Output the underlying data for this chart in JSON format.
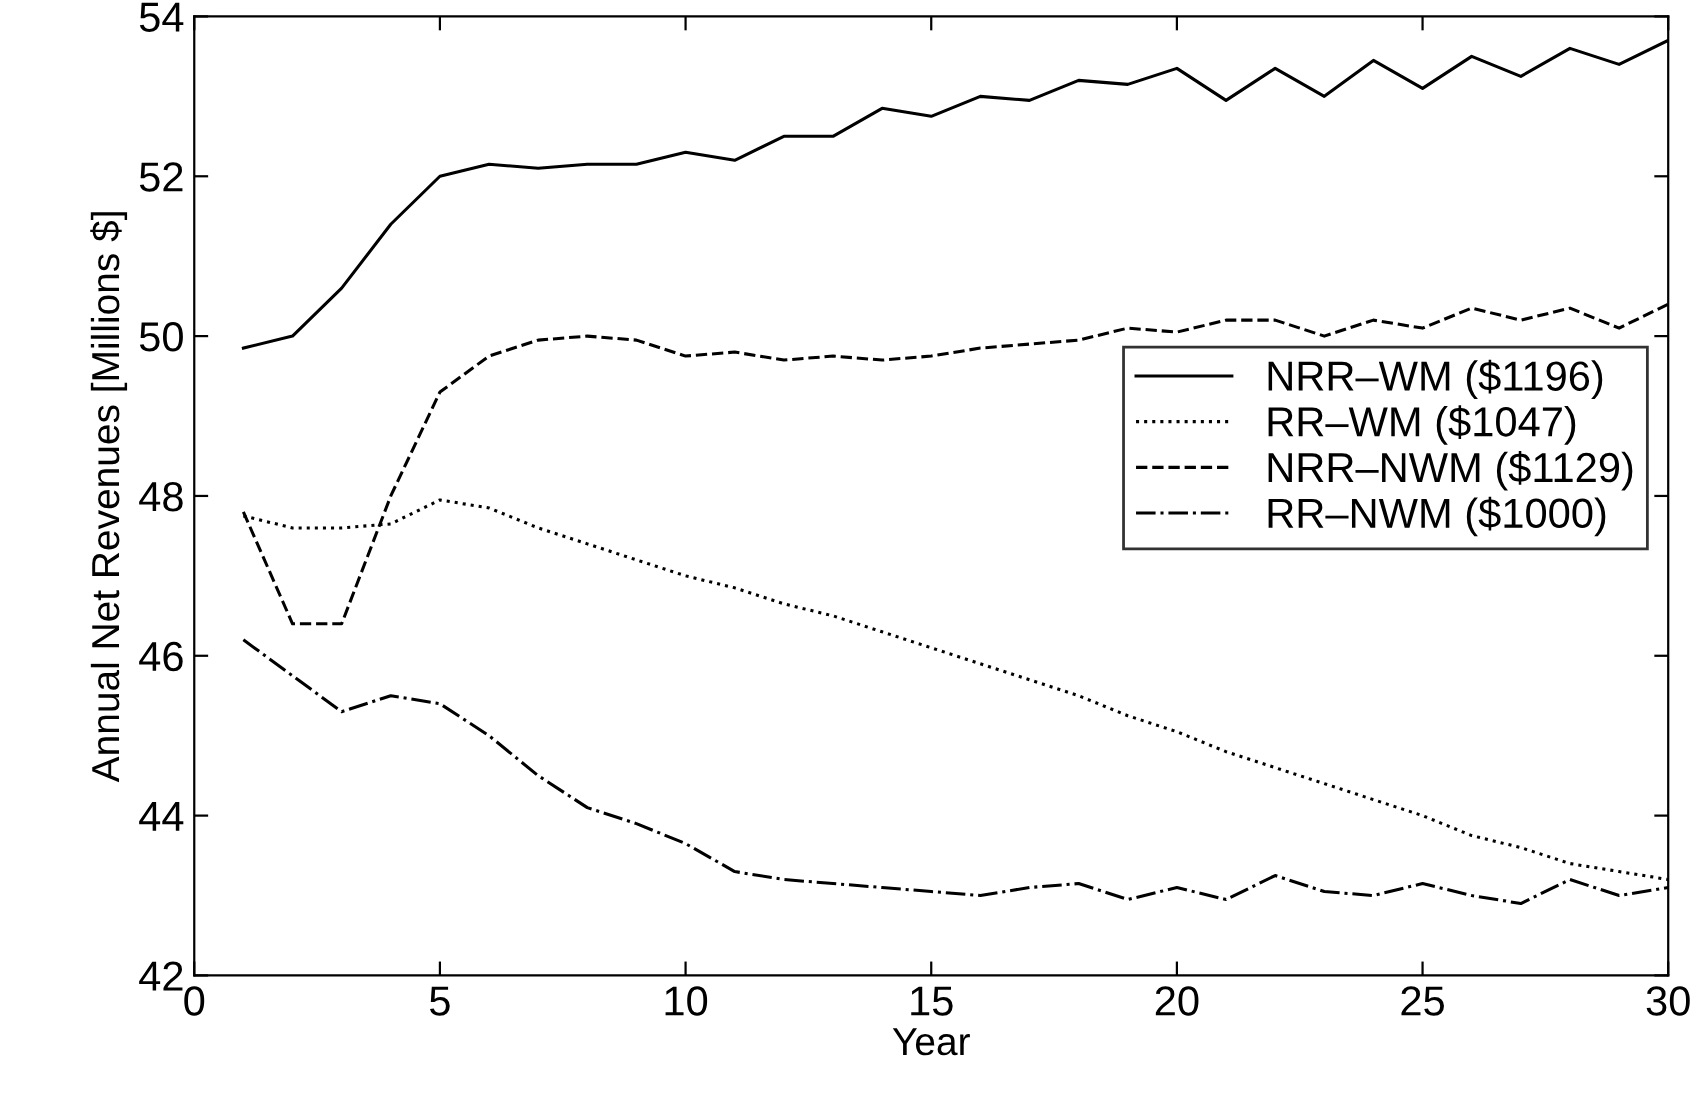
{
  "chart_data": {
    "type": "line",
    "xlabel": "Year",
    "ylabel": "Annual Net Revenues [Millions $]",
    "x": [
      1,
      2,
      3,
      4,
      5,
      6,
      7,
      8,
      9,
      10,
      11,
      12,
      13,
      14,
      15,
      16,
      17,
      18,
      19,
      20,
      21,
      22,
      23,
      24,
      25,
      26,
      27,
      28,
      29,
      30
    ],
    "xlim": [
      0,
      30
    ],
    "xticks": [
      0,
      5,
      10,
      15,
      20,
      25,
      30
    ],
    "ylim": [
      42,
      54
    ],
    "yticks": [
      42,
      44,
      46,
      48,
      50,
      52,
      54
    ],
    "grid": false,
    "legend": "center right",
    "marker": "none",
    "series": [
      {
        "name": "NRR–WM ($1196)",
        "color": "#000000",
        "line_style": "solid",
        "values": [
          49.85,
          50.0,
          50.6,
          51.4,
          52.0,
          52.15,
          52.1,
          52.15,
          52.15,
          52.3,
          52.2,
          52.5,
          52.5,
          52.85,
          52.75,
          53.0,
          52.95,
          53.2,
          53.15,
          53.35,
          52.95,
          53.35,
          53.0,
          53.45,
          53.1,
          53.5,
          53.25,
          53.6,
          53.4,
          53.7
        ]
      },
      {
        "name": "RR–WM ($1047)",
        "color": "#000000",
        "line_style": "dotted",
        "values": [
          47.75,
          47.6,
          47.6,
          47.65,
          47.95,
          47.85,
          47.6,
          47.4,
          47.2,
          47.0,
          46.85,
          46.65,
          46.5,
          46.3,
          46.1,
          45.9,
          45.7,
          45.5,
          45.25,
          45.05,
          44.8,
          44.6,
          44.4,
          44.2,
          44.0,
          43.75,
          43.6,
          43.4,
          43.3,
          43.2
        ]
      },
      {
        "name": "NRR–NWM ($1129)",
        "color": "#000000",
        "line_style": "dashed",
        "values": [
          47.8,
          46.4,
          46.4,
          48.0,
          49.3,
          49.75,
          49.95,
          50.0,
          49.95,
          49.75,
          49.8,
          49.7,
          49.75,
          49.7,
          49.75,
          49.85,
          49.9,
          49.95,
          50.1,
          50.05,
          50.2,
          50.2,
          50.0,
          50.2,
          50.1,
          50.35,
          50.2,
          50.35,
          50.1,
          50.4
        ]
      },
      {
        "name": "RR–NWM ($1000)",
        "color": "#000000",
        "line_style": "dashdot",
        "values": [
          46.2,
          45.75,
          45.3,
          45.5,
          45.4,
          45.0,
          44.5,
          44.1,
          43.9,
          43.65,
          43.3,
          43.2,
          43.15,
          43.1,
          43.05,
          43.0,
          43.1,
          43.15,
          42.95,
          43.1,
          42.95,
          43.25,
          43.05,
          43.0,
          43.15,
          43.0,
          42.9,
          43.2,
          43.0,
          43.1
        ]
      }
    ]
  }
}
